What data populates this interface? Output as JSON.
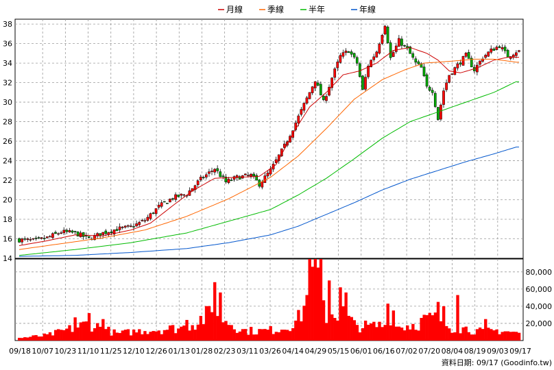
{
  "chart_data": {
    "type": "candlestick",
    "legend": [
      {
        "name": "月線",
        "color": "#cc0000"
      },
      {
        "name": "季線",
        "color": "#ff6600"
      },
      {
        "name": "半年",
        "color": "#00bb00"
      },
      {
        "name": "年線",
        "color": "#0055cc"
      }
    ],
    "price_axis": {
      "ylim": [
        14,
        38.5
      ],
      "ticks": [
        14,
        16,
        18,
        20,
        22,
        24,
        26,
        28,
        30,
        32,
        34,
        36,
        38
      ],
      "position": "left"
    },
    "volume_axis": {
      "ylim": [
        0,
        95000
      ],
      "ticks": [
        20000,
        40000,
        60000,
        80000
      ],
      "tick_labels": [
        "20,000",
        "40,000",
        "60,000",
        "80,000"
      ],
      "position": "right"
    },
    "x_ticks": [
      "09/18",
      "10/07",
      "10/23",
      "11/10",
      "11/25",
      "12/10",
      "12/26",
      "01/13",
      "01/28",
      "02/23",
      "03/11",
      "03/26",
      "04/14",
      "04/29",
      "05/15",
      "06/01",
      "06/16",
      "07/02",
      "07/20",
      "08/04",
      "08/19",
      "09/03",
      "09/17"
    ],
    "grid": true,
    "credit": "資料日期: 09/17 (Goodinfo.tw)",
    "close_path": [
      [
        0,
        15.9
      ],
      [
        6,
        15.8
      ],
      [
        10,
        16.1
      ],
      [
        15,
        16.7
      ],
      [
        20,
        16.6
      ],
      [
        25,
        16.0
      ],
      [
        30,
        16.6
      ],
      [
        35,
        17.0
      ],
      [
        40,
        17.2
      ],
      [
        45,
        17.9
      ],
      [
        50,
        19.3
      ],
      [
        55,
        20.2
      ],
      [
        60,
        20.6
      ],
      [
        65,
        22.1
      ],
      [
        70,
        23.2
      ],
      [
        74,
        21.8
      ],
      [
        78,
        22.3
      ],
      [
        83,
        22.5
      ],
      [
        86,
        21.6
      ],
      [
        90,
        23.0
      ],
      [
        95,
        25.5
      ],
      [
        100,
        28.5
      ],
      [
        104,
        31.0
      ],
      [
        106,
        32.3
      ],
      [
        109,
        30.0
      ],
      [
        112,
        32.5
      ],
      [
        115,
        34.7
      ],
      [
        118,
        35.3
      ],
      [
        121,
        34.0
      ],
      [
        123,
        31.2
      ],
      [
        125,
        33.8
      ],
      [
        128,
        35.2
      ],
      [
        131,
        38.0
      ],
      [
        133,
        34.5
      ],
      [
        136,
        36.3
      ],
      [
        139,
        35.4
      ],
      [
        142,
        34.0
      ],
      [
        144,
        33.5
      ],
      [
        146,
        31.5
      ],
      [
        148,
        31.2
      ],
      [
        150,
        28.3
      ],
      [
        152,
        31.2
      ],
      [
        154,
        32.8
      ],
      [
        157,
        33.8
      ],
      [
        160,
        34.8
      ],
      [
        163,
        33.3
      ],
      [
        166,
        34.6
      ],
      [
        169,
        35.3
      ],
      [
        172,
        35.8
      ],
      [
        175,
        34.7
      ],
      [
        178,
        35.2
      ]
    ],
    "ma_month": [
      [
        0,
        15.3
      ],
      [
        10,
        15.8
      ],
      [
        20,
        16.4
      ],
      [
        30,
        16.3
      ],
      [
        40,
        16.9
      ],
      [
        47,
        17.6
      ],
      [
        55,
        19.4
      ],
      [
        62,
        20.9
      ],
      [
        70,
        22.2
      ],
      [
        78,
        22.3
      ],
      [
        86,
        22.4
      ],
      [
        92,
        23.6
      ],
      [
        98,
        26.8
      ],
      [
        104,
        29.5
      ],
      [
        110,
        31.0
      ],
      [
        116,
        32.8
      ],
      [
        122,
        33.2
      ],
      [
        128,
        34.0
      ],
      [
        134,
        35.3
      ],
      [
        140,
        35.6
      ],
      [
        146,
        35.0
      ],
      [
        150,
        34.3
      ],
      [
        154,
        33.2
      ],
      [
        158,
        33.0
      ],
      [
        164,
        33.5
      ],
      [
        170,
        34.3
      ],
      [
        175,
        34.6
      ],
      [
        178,
        34.6
      ]
    ],
    "ma_season": [
      [
        0,
        14.9
      ],
      [
        15,
        15.5
      ],
      [
        30,
        16.1
      ],
      [
        45,
        16.9
      ],
      [
        60,
        18.3
      ],
      [
        75,
        20.1
      ],
      [
        90,
        22.3
      ],
      [
        100,
        24.5
      ],
      [
        110,
        27.3
      ],
      [
        120,
        30.3
      ],
      [
        130,
        32.3
      ],
      [
        138,
        33.3
      ],
      [
        145,
        34.0
      ],
      [
        155,
        34.2
      ],
      [
        163,
        34.4
      ],
      [
        170,
        34.4
      ],
      [
        178,
        34.1
      ]
    ],
    "ma_halfyear": [
      [
        0,
        14.3
      ],
      [
        20,
        14.9
      ],
      [
        40,
        15.6
      ],
      [
        60,
        16.6
      ],
      [
        75,
        17.8
      ],
      [
        90,
        19.0
      ],
      [
        100,
        20.5
      ],
      [
        110,
        22.2
      ],
      [
        120,
        24.2
      ],
      [
        130,
        26.3
      ],
      [
        140,
        28.0
      ],
      [
        150,
        29.0
      ],
      [
        160,
        30.0
      ],
      [
        170,
        31.0
      ],
      [
        178,
        32.1
      ]
    ],
    "ma_year": [
      [
        0,
        14.2
      ],
      [
        20,
        14.3
      ],
      [
        40,
        14.6
      ],
      [
        60,
        15.0
      ],
      [
        75,
        15.6
      ],
      [
        90,
        16.4
      ],
      [
        100,
        17.3
      ],
      [
        110,
        18.5
      ],
      [
        120,
        19.7
      ],
      [
        130,
        21.0
      ],
      [
        140,
        22.1
      ],
      [
        150,
        23.0
      ],
      [
        160,
        23.9
      ],
      [
        170,
        24.7
      ],
      [
        178,
        25.4
      ]
    ],
    "volume_path": [
      [
        0,
        3000
      ],
      [
        10,
        6000
      ],
      [
        20,
        15000
      ],
      [
        25,
        20000
      ],
      [
        30,
        14000
      ],
      [
        35,
        8000
      ],
      [
        45,
        12000
      ],
      [
        55,
        14000
      ],
      [
        60,
        16000
      ],
      [
        65,
        25000
      ],
      [
        70,
        33000
      ],
      [
        75,
        22000
      ],
      [
        80,
        12000
      ],
      [
        85,
        11000
      ],
      [
        90,
        12000
      ],
      [
        95,
        15000
      ],
      [
        100,
        25000
      ],
      [
        104,
        55000
      ],
      [
        106,
        70000
      ],
      [
        108,
        50000
      ],
      [
        110,
        30000
      ],
      [
        115,
        35000
      ],
      [
        120,
        18000
      ],
      [
        125,
        16000
      ],
      [
        130,
        18000
      ],
      [
        135,
        16000
      ],
      [
        140,
        18000
      ],
      [
        145,
        22000
      ],
      [
        150,
        28000
      ],
      [
        154,
        16000
      ],
      [
        160,
        14000
      ],
      [
        166,
        10000
      ],
      [
        172,
        12000
      ],
      [
        178,
        9000
      ]
    ],
    "volume_spikes": [
      [
        20,
        27000
      ],
      [
        25,
        32000
      ],
      [
        30,
        25000
      ],
      [
        60,
        24000
      ],
      [
        70,
        68000
      ],
      [
        72,
        56000
      ],
      [
        104,
        95000
      ],
      [
        106,
        98000
      ],
      [
        107,
        85000
      ],
      [
        108,
        98000
      ],
      [
        111,
        70000
      ],
      [
        115,
        62000
      ],
      [
        117,
        56000
      ],
      [
        132,
        43000
      ],
      [
        134,
        35000
      ],
      [
        145,
        30000
      ],
      [
        150,
        45000
      ],
      [
        152,
        40000
      ],
      [
        157,
        53000
      ],
      [
        167,
        25000
      ]
    ]
  }
}
